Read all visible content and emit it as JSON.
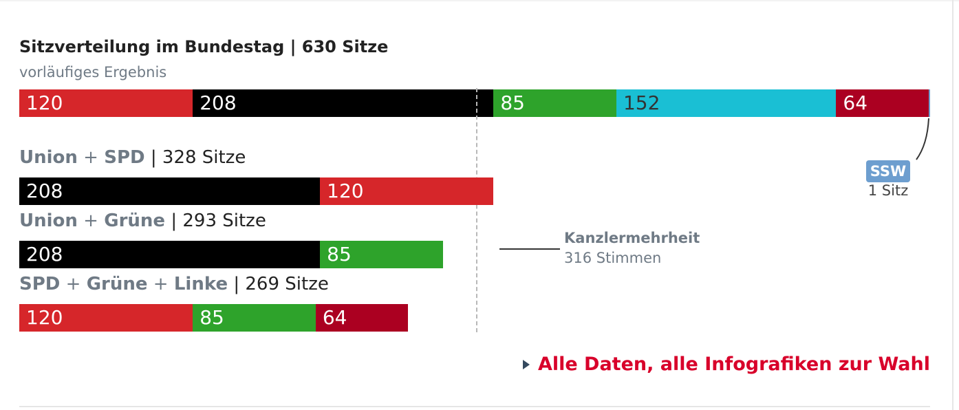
{
  "header": {
    "title": "Sitzverteilung im Bundestag | 630 Sitze",
    "subtitle": "vorläufiges Ergebnis"
  },
  "chart_data": {
    "type": "bar",
    "stacked": true,
    "orientation": "horizontal",
    "total_seats": 630,
    "majority_threshold": 316,
    "parties": [
      {
        "id": "spd",
        "value": 120,
        "color": "#d6262a"
      },
      {
        "id": "union",
        "value": 208,
        "color": "#000000"
      },
      {
        "id": "gruene",
        "value": 85,
        "color": "#2ea32b"
      },
      {
        "id": "afd",
        "value": 152,
        "color": "#1abfd4"
      },
      {
        "id": "linke",
        "value": 64,
        "color": "#ab0021"
      },
      {
        "id": "ssw",
        "value": 1,
        "color": "#6d9ecf"
      }
    ],
    "main_bar": [
      "spd",
      "union",
      "gruene",
      "afd",
      "linke",
      "ssw"
    ],
    "coalitions": [
      {
        "parts": [
          "Union",
          " + ",
          "SPD"
        ],
        "seats": "328 Sitze",
        "order": [
          "union",
          "spd"
        ]
      },
      {
        "parts": [
          "Union",
          " + ",
          "Grüne"
        ],
        "seats": "293 Sitze",
        "order": [
          "union",
          "gruene"
        ]
      },
      {
        "parts": [
          "SPD",
          " + ",
          "Grüne",
          " + ",
          "Linke"
        ],
        "seats": "269 Sitze",
        "order": [
          "spd",
          "gruene",
          "linke"
        ]
      }
    ],
    "annotations": {
      "majority_label": "Kanzlermehrheit",
      "majority_votes": "316 Stimmen",
      "ssw_label": "SSW",
      "ssw_seats": "1 Sitz"
    }
  },
  "footer": {
    "link_text": "Alle Daten, alle Infografiken zur Wahl"
  }
}
